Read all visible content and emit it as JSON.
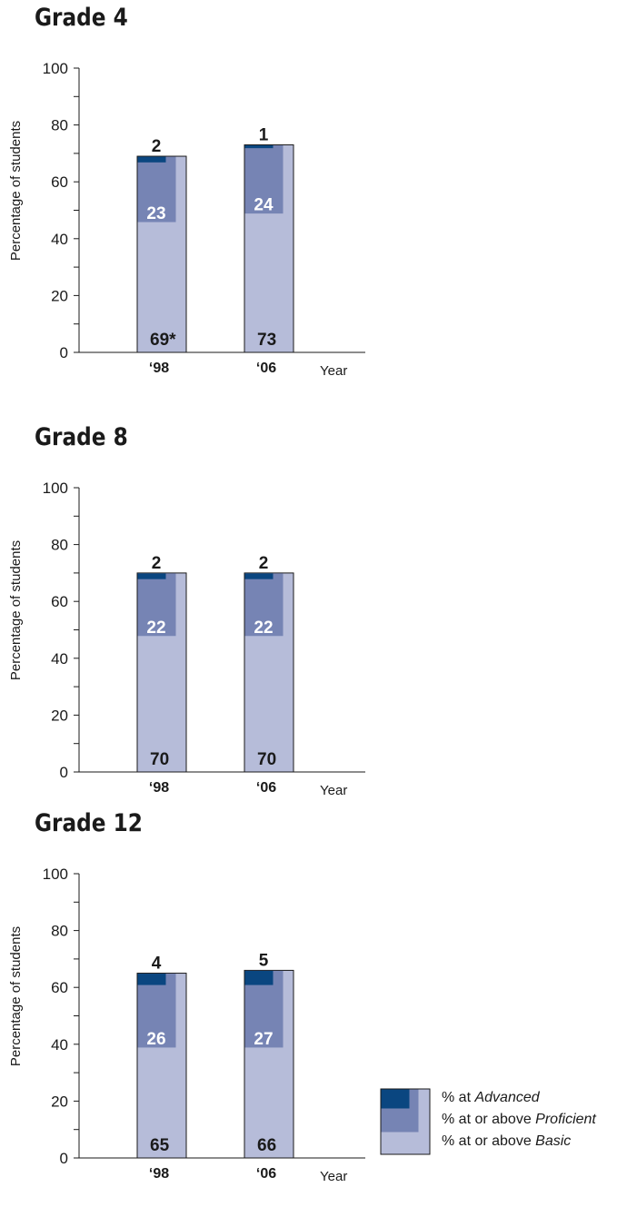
{
  "colors": {
    "advanced": "#0a4680",
    "proficient": "#7684b4",
    "basic": "#b6bcd9",
    "axis": "#1a1a1a"
  },
  "legend": {
    "advanced_prefix": "% at ",
    "advanced_level": "Advanced",
    "proficient_prefix": "% at or above ",
    "proficient_level": "Proficient",
    "basic_prefix": "% at or above ",
    "basic_level": "Basic"
  },
  "chart_data": [
    {
      "type": "bar",
      "title": "Grade 4",
      "xlabel": "Year",
      "ylabel": "Percentage of students",
      "ylim": [
        0,
        100
      ],
      "yticks": [
        "0",
        "20",
        "40",
        "60",
        "80",
        "100"
      ],
      "categories": [
        "‘98",
        "‘06"
      ],
      "series": [
        {
          "name": "% at or above Basic",
          "values": [
            69,
            73
          ],
          "labels": [
            "69*",
            "73"
          ]
        },
        {
          "name": "% at or above Proficient",
          "values": [
            23,
            24
          ],
          "labels": [
            "23",
            "24"
          ]
        },
        {
          "name": "% at Advanced",
          "values": [
            2,
            1
          ],
          "labels": [
            "2",
            "1"
          ]
        }
      ]
    },
    {
      "type": "bar",
      "title": "Grade 8",
      "xlabel": "Year",
      "ylabel": "Percentage of students",
      "ylim": [
        0,
        100
      ],
      "yticks": [
        "0",
        "20",
        "40",
        "60",
        "80",
        "100"
      ],
      "categories": [
        "‘98",
        "‘06"
      ],
      "series": [
        {
          "name": "% at or above Basic",
          "values": [
            70,
            70
          ],
          "labels": [
            "70",
            "70"
          ]
        },
        {
          "name": "% at or above Proficient",
          "values": [
            22,
            22
          ],
          "labels": [
            "22",
            "22"
          ]
        },
        {
          "name": "% at Advanced",
          "values": [
            2,
            2
          ],
          "labels": [
            "2",
            "2"
          ]
        }
      ]
    },
    {
      "type": "bar",
      "title": "Grade 12",
      "xlabel": "Year",
      "ylabel": "Percentage of students",
      "ylim": [
        0,
        100
      ],
      "yticks": [
        "0",
        "20",
        "40",
        "60",
        "80",
        "100"
      ],
      "categories": [
        "‘98",
        "‘06"
      ],
      "series": [
        {
          "name": "% at or above Basic",
          "values": [
            65,
            66
          ],
          "labels": [
            "65",
            "66"
          ]
        },
        {
          "name": "% at or above Proficient",
          "values": [
            26,
            27
          ],
          "labels": [
            "26",
            "27"
          ]
        },
        {
          "name": "% at Advanced",
          "values": [
            4,
            5
          ],
          "labels": [
            "4",
            "5"
          ]
        }
      ]
    }
  ]
}
